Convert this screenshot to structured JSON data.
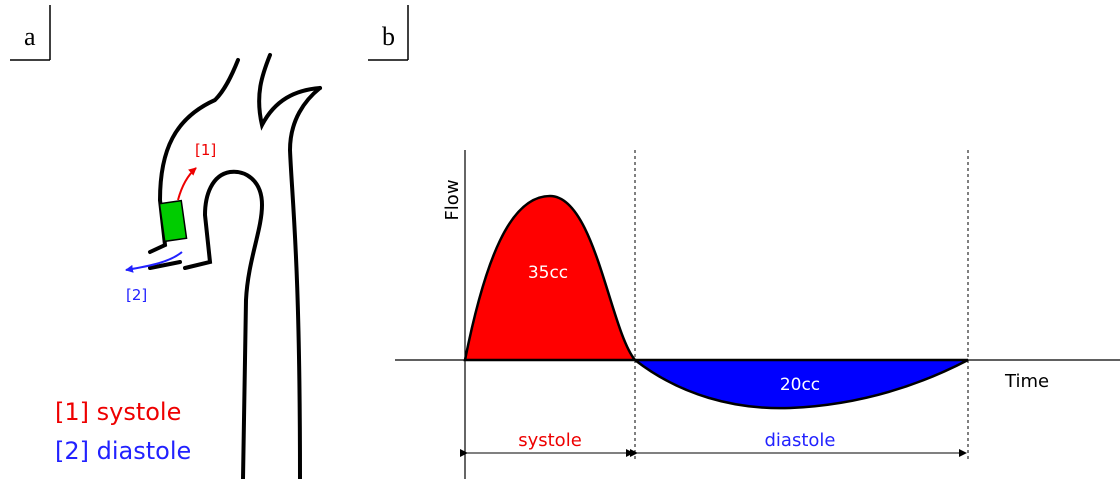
{
  "panel_a": {
    "label": "a",
    "arrow_labels": [
      "[1]",
      "[2]"
    ],
    "legend": [
      "[1] systole",
      "[2] diastole"
    ]
  },
  "panel_b": {
    "label": "b",
    "y_axis_label": "Flow",
    "x_axis_label": "Time",
    "area_labels": [
      "35cc",
      "20cc"
    ],
    "phases": [
      "systole",
      "diastole"
    ]
  }
}
